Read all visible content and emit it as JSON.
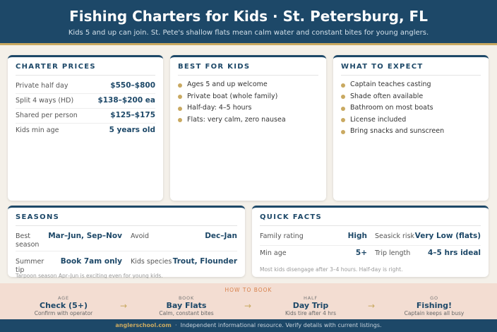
{
  "header": {
    "title": "Fishing Charters for Kids · St. Petersburg, FL",
    "subtitle": "Kids 5 and up can join. St. Pete's shallow flats mean calm water and constant bites for young anglers."
  },
  "charter_prices": {
    "title": "CHARTER PRICES",
    "rows": [
      [
        "Private half day",
        "$550–$800"
      ],
      [
        "Split 4 ways (HD)",
        "$138–$200 ea"
      ],
      [
        "Shared per person",
        "$125–$175"
      ],
      [
        "Kids min age",
        "5 years old"
      ]
    ]
  },
  "best_for_kids": {
    "title": "BEST FOR KIDS",
    "items": [
      "Ages 5 and up welcome",
      "Private boat (whole family)",
      "Half-day: 4–5 hours",
      "Flats: very calm, zero nausea"
    ]
  },
  "what_to_expect": {
    "title": "WHAT TO EXPECT",
    "items": [
      "Captain teaches casting",
      "Shade often available",
      "Bathroom on most boats",
      "License included",
      "Bring snacks and sunscreen"
    ]
  },
  "seasons": {
    "title": "SEASONS",
    "rows": [
      [
        "Best season",
        "Mar–Jun, Sep–Nov",
        "Avoid",
        "Dec–Jan"
      ],
      [
        "Summer tip",
        "Book 7am only",
        "Kids species",
        "Trout, Flounder"
      ]
    ],
    "note": "Tarpoon season Apr–Jun is exciting even for young kids."
  },
  "quick_facts": {
    "title": "QUICK FACTS",
    "rows": [
      [
        "Family rating",
        "High",
        "Seasick risk",
        "Very Low (flats)"
      ],
      [
        "Min age",
        "5+",
        "Trip length",
        "4–5 hrs ideal"
      ]
    ],
    "note": "Most kids disengage after 3–4 hours. Half-day is right."
  },
  "how_to_book": {
    "title": "HOW TO BOOK",
    "steps": [
      [
        "AGE",
        "Check (5+)",
        "Confirm with operator"
      ],
      [
        "BOOK",
        "Bay Flats",
        "Calm, constant bites"
      ],
      [
        "HALF",
        "Day Trip",
        "Kids tire after 4 hrs"
      ],
      [
        "GO",
        "Fishing!",
        "Captain keeps all busy"
      ]
    ]
  },
  "footer": {
    "site": "anglerschool.com",
    "text": "Independent informational resource. Verify details with current listings."
  }
}
